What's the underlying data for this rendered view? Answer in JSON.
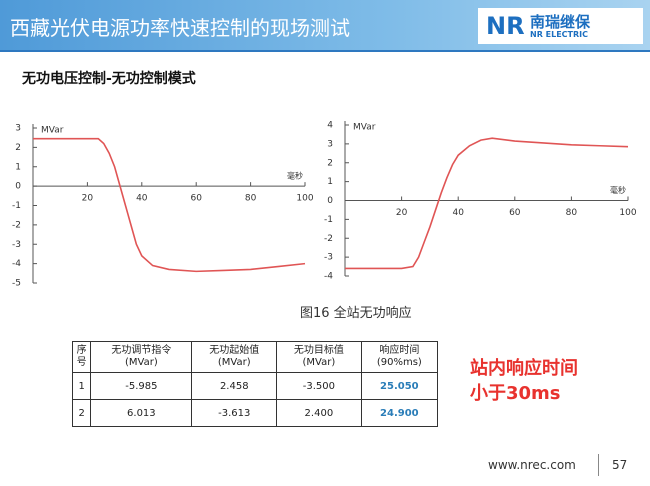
{
  "header": {
    "title": "西藏光伏电源功率快速控制的现场测试",
    "logo_mark": "NR",
    "logo_name": "南瑞继保",
    "logo_en": "NR ELECTRIC"
  },
  "subtitle": "无功电压控制-无功控制模式",
  "chart_data": [
    {
      "type": "line",
      "y_label": "MVar",
      "x_label": "毫秒",
      "color": "#e05555",
      "x": [
        0,
        20,
        24,
        26,
        28,
        30,
        32,
        34,
        36,
        38,
        40,
        44,
        50,
        60,
        70,
        80,
        90,
        100
      ],
      "values": [
        2.45,
        2.45,
        2.45,
        2.2,
        1.7,
        1.0,
        0.0,
        -1.0,
        -2.0,
        -3.0,
        -3.6,
        -4.1,
        -4.3,
        -4.4,
        -4.35,
        -4.3,
        -4.15,
        -4.0
      ],
      "xlim": [
        0,
        100
      ],
      "xticks": [
        20,
        40,
        60,
        80,
        100
      ],
      "ylim": [
        -5,
        3
      ],
      "yticks": [
        -5,
        -4,
        -3,
        -2,
        -1,
        0,
        1,
        2,
        3
      ]
    },
    {
      "type": "line",
      "y_label": "MVar",
      "x_label": "毫秒",
      "color": "#e05555",
      "x": [
        0,
        20,
        24,
        26,
        28,
        30,
        32,
        34,
        36,
        38,
        40,
        44,
        48,
        52,
        60,
        70,
        80,
        90,
        100
      ],
      "values": [
        -3.6,
        -3.6,
        -3.5,
        -3.0,
        -2.2,
        -1.4,
        -0.5,
        0.4,
        1.2,
        1.9,
        2.4,
        2.9,
        3.2,
        3.3,
        3.15,
        3.05,
        2.95,
        2.9,
        2.85
      ],
      "xlim": [
        0,
        100
      ],
      "xticks": [
        20,
        40,
        60,
        80,
        100
      ],
      "ylim": [
        -4,
        4
      ],
      "yticks": [
        -4,
        -3,
        -2,
        -1,
        0,
        1,
        2,
        3,
        4
      ]
    }
  ],
  "caption": "图16 全站无功响应",
  "table": {
    "header": [
      [
        "序",
        "号"
      ],
      [
        "无功调节指令",
        "(MVar)"
      ],
      [
        "无功起始值",
        "(MVar)"
      ],
      [
        "无功目标值",
        "(MVar)"
      ],
      [
        "响应时间",
        "(90%ms)"
      ]
    ],
    "rows": [
      [
        "1",
        "-5.985",
        "2.458",
        "-3.500",
        "25.050"
      ],
      [
        "2",
        "6.013",
        "-3.613",
        "2.400",
        "24.900"
      ]
    ]
  },
  "callout": [
    "站内响应时间",
    "小于30ms"
  ],
  "footer": {
    "url": "www.nrec.com",
    "page": "57"
  }
}
